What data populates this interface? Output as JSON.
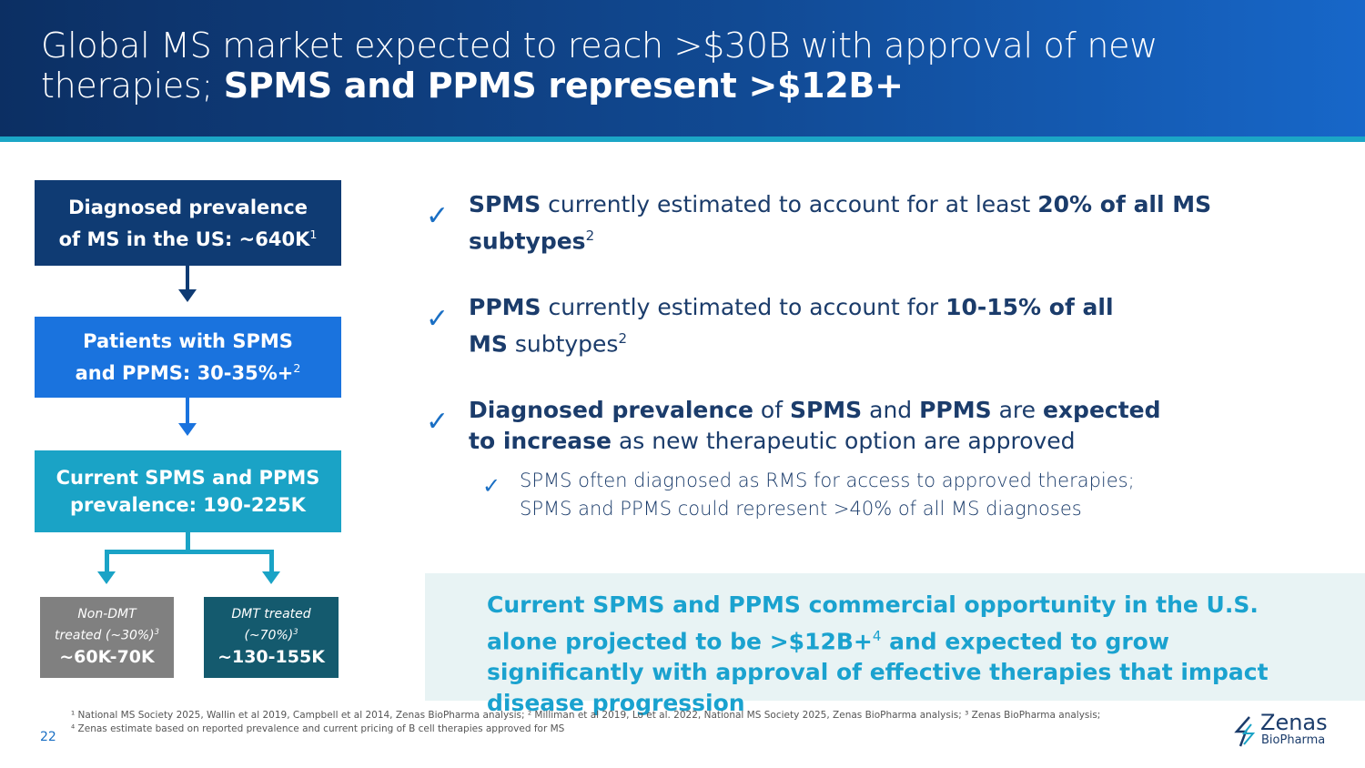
{
  "title": {
    "regular1": "Global MS market expected to reach >$30B with approval of new therapies; ",
    "bold": "SPMS and PPMS represent >$12B+"
  },
  "flow": {
    "box1": {
      "line1": "Diagnosed prevalence",
      "line2": "of MS in the US: ~640K",
      "sup": "1",
      "color": "#0f3b73"
    },
    "box2": {
      "line1": "Patients with SPMS",
      "line2": "and PPMS: 30-35%+",
      "sup": "2",
      "color": "#1a73de"
    },
    "box3": {
      "line1": "Current SPMS and PPMS",
      "line2": "prevalence: 190-225K",
      "color": "#1aa3c6"
    },
    "non_dmt": {
      "line1": "Non-DMT",
      "line2": "treated (~30%)",
      "sup": "3",
      "value": "~60K-70K",
      "color": "#808080"
    },
    "dmt": {
      "line1": "DMT treated",
      "line2": "(~70%)",
      "sup": "3",
      "value": "~130-155K",
      "color": "#145a6e"
    }
  },
  "bullets": [
    {
      "b1": "SPMS",
      "t1": " currently estimated to account for at least ",
      "b2": "20% of all MS subtypes",
      "sup": "2"
    },
    {
      "b1": "PPMS",
      "t1": " currently estimated to account for ",
      "b2": "10-15% of all MS",
      "t2": " subtypes",
      "sup": "2"
    },
    {
      "b1": "Diagnosed prevalence",
      "t1": " of ",
      "b2": "SPMS",
      "t2": " and ",
      "b3": "PPMS",
      "t3": " are ",
      "b4": "expected to increase",
      "t4": " as new therapeutic option are approved"
    }
  ],
  "sub_bullet": {
    "line1": "SPMS often diagnosed as RMS for access to approved therapies;",
    "line2": "SPMS and PPMS could represent >40% of all MS diagnoses"
  },
  "callout": {
    "t1": "Current SPMS and PPMS commercial opportunity in the U.S. alone projected to be >$12B+",
    "sup": "4",
    "t2": " and expected to grow significantly with approval of effective therapies that impact disease progression"
  },
  "footnotes": {
    "line1": "¹ National MS Society 2025,  Wallin et al 2019, Campbell et al 2014, Zenas BioPharma analysis; ² Milliman et al 2019, Lo et al. 2022, National MS Society 2025, Zenas BioPharma analysis; ³ Zenas BioPharma analysis;",
    "line2": "⁴ Zenas estimate based on reported prevalence and current pricing of B cell therapies approved for MS"
  },
  "page_number": "22",
  "logo": {
    "name": "Zenas",
    "sub": "BioPharma"
  },
  "check_icon": "checkmark-icon"
}
